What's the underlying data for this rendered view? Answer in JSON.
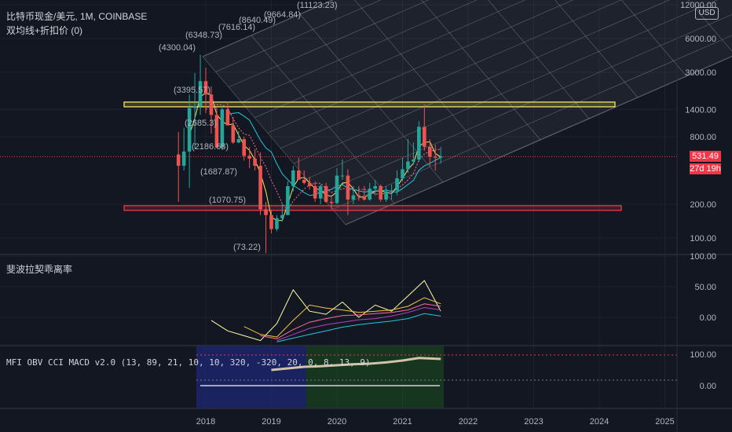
{
  "header": {
    "symbol_line": "比特币现金/美元, 1M, COINBASE",
    "indicator_line": "双均线+折扣价 (0)",
    "currency": "USD"
  },
  "price_panel": {
    "y_axis_ticks": [
      "12000.00",
      "6000.00",
      "3000.00",
      "1400.00",
      "800.00",
      "200.00",
      "100.00"
    ],
    "last_price": "531.49",
    "countdown": "27d 19h",
    "fib_labels": [
      "(11123.23)",
      "(9664.84)",
      "(8640.49)",
      "(7616.14)",
      "(6348.73)",
      "(4300.04)",
      "(3395.57)",
      "(2685.3)",
      "(2186.68)",
      "(1687.87)",
      "(1070.75)",
      "(73.22)"
    ],
    "zone_upper": 1550,
    "zone_lower": 185
  },
  "fib_panel": {
    "title": "斐波拉契乖离率",
    "y_axis_ticks": [
      "100.00",
      "50.00",
      "0.00"
    ]
  },
  "mfi_panel": {
    "title": "MFI OBV CCI MACD v2.0 (13, 89, 21, 10, 10, 320, -320, 20, 0, 8, 13, 9)",
    "y_axis_ticks": [
      "100.00",
      "0.00"
    ]
  },
  "x_axis": {
    "ticks": [
      "2018",
      "2019",
      "2020",
      "2021",
      "2022",
      "2023",
      "2024",
      "2025"
    ]
  },
  "colors": {
    "background": "#131722",
    "up": "#26a69a",
    "down": "#ef5350",
    "zone_yellow": "#f2e663",
    "zone_red": "#f23645"
  },
  "chart_data": [
    {
      "type": "candlestick",
      "title": "比特币现金/美元, 1M, COINBASE",
      "scale": "log",
      "ylim": [
        70,
        13000
      ],
      "x": [
        "2017-08",
        "2017-09",
        "2017-10",
        "2017-11",
        "2017-12",
        "2018-01",
        "2018-02",
        "2018-03",
        "2018-04",
        "2018-05",
        "2018-06",
        "2018-07",
        "2018-08",
        "2018-09",
        "2018-10",
        "2018-11",
        "2018-12",
        "2019-01",
        "2019-02",
        "2019-03",
        "2019-04",
        "2019-05",
        "2019-06",
        "2019-07",
        "2019-08",
        "2019-09",
        "2019-10",
        "2019-11",
        "2019-12",
        "2020-01",
        "2020-02",
        "2020-03",
        "2020-04",
        "2020-05",
        "2020-06",
        "2020-07",
        "2020-08",
        "2020-09",
        "2020-10",
        "2020-11",
        "2020-12",
        "2021-01",
        "2021-02",
        "2021-03",
        "2021-04",
        "2021-05",
        "2021-06",
        "2021-07",
        "2021-08"
      ],
      "open": [
        555,
        440,
        590,
        1440,
        1500,
        2500,
        1900,
        1250,
        640,
        1400,
        1010,
        710,
        760,
        540,
        510,
        440,
        180,
        160,
        120,
        150,
        160,
        290,
        400,
        330,
        310,
        290,
        225,
        290,
        210,
        205,
        360,
        360,
        220,
        240,
        235,
        220,
        275,
        290,
        220,
        260,
        265,
        340,
        410,
        480,
        500,
        980,
        650,
        530,
        520
      ],
      "high": [
        880,
        960,
        1900,
        2950,
        4300,
        3300,
        2250,
        1450,
        1500,
        1650,
        1200,
        900,
        800,
        650,
        620,
        580,
        210,
        175,
        160,
        200,
        320,
        440,
        520,
        400,
        350,
        320,
        300,
        310,
        230,
        420,
        500,
        410,
        290,
        290,
        290,
        310,
        330,
        300,
        290,
        300,
        400,
        520,
        760,
        710,
        1100,
        1550,
        760,
        680,
        650
      ],
      "low": [
        210,
        400,
        280,
        620,
        1250,
        1300,
        850,
        640,
        610,
        1000,
        690,
        700,
        490,
        420,
        400,
        160,
        73.22,
        110,
        115,
        140,
        160,
        260,
        340,
        300,
        270,
        210,
        200,
        205,
        180,
        200,
        330,
        160,
        200,
        215,
        215,
        215,
        240,
        210,
        210,
        220,
        240,
        320,
        380,
        450,
        480,
        600,
        440,
        400,
        460
      ],
      "close": [
        440,
        590,
        1440,
        1500,
        2500,
        1900,
        1250,
        640,
        1400,
        1010,
        710,
        760,
        540,
        510,
        440,
        180,
        160,
        120,
        150,
        160,
        290,
        400,
        330,
        310,
        290,
        225,
        290,
        210,
        205,
        360,
        360,
        220,
        240,
        235,
        220,
        275,
        290,
        220,
        260,
        265,
        340,
        410,
        480,
        500,
        980,
        650,
        530,
        520,
        531.49
      ]
    },
    {
      "type": "line",
      "title": "斐波拉契乖离率",
      "ylim": [
        -40,
        100
      ],
      "x": [
        "2018-02",
        "2018-05",
        "2018-08",
        "2018-11",
        "2019-02",
        "2019-05",
        "2019-08",
        "2019-11",
        "2020-02",
        "2020-05",
        "2020-08",
        "2020-11",
        "2021-02",
        "2021-05",
        "2021-08"
      ],
      "series": [
        {
          "color": "#ffffa8",
          "values": [
            -5,
            -22,
            -30,
            -38,
            -10,
            45,
            10,
            5,
            25,
            0,
            20,
            10,
            35,
            60,
            10
          ]
        },
        {
          "color": "#f5c542",
          "values": [
            null,
            null,
            -15,
            -28,
            -32,
            -5,
            20,
            15,
            12,
            8,
            10,
            12,
            18,
            32,
            22
          ]
        },
        {
          "color": "#ff6b9a",
          "values": [
            null,
            null,
            null,
            -30,
            -35,
            -20,
            -8,
            -2,
            3,
            4,
            6,
            8,
            12,
            22,
            18
          ]
        },
        {
          "color": "#ab47bc",
          "values": [
            null,
            null,
            null,
            null,
            -38,
            -28,
            -18,
            -12,
            -8,
            -4,
            -2,
            2,
            8,
            16,
            12
          ]
        },
        {
          "color": "#26c6da",
          "values": [
            null,
            null,
            null,
            null,
            -40,
            -34,
            -28,
            -22,
            -16,
            -12,
            -9,
            -6,
            -2,
            6,
            2
          ]
        }
      ]
    },
    {
      "type": "line",
      "title": "MFI OBV CCI MACD v2.0",
      "ylim": [
        -50,
        110
      ],
      "x": [
        "2019-01",
        "2019-04",
        "2019-07",
        "2019-10",
        "2020-01",
        "2020-04",
        "2020-07",
        "2020-10",
        "2021-01",
        "2021-04",
        "2021-08"
      ],
      "series": [
        {
          "color": "#d1c4a8",
          "values": [
            50,
            55,
            60,
            62,
            65,
            68,
            70,
            74,
            80,
            88,
            85
          ]
        }
      ]
    }
  ]
}
